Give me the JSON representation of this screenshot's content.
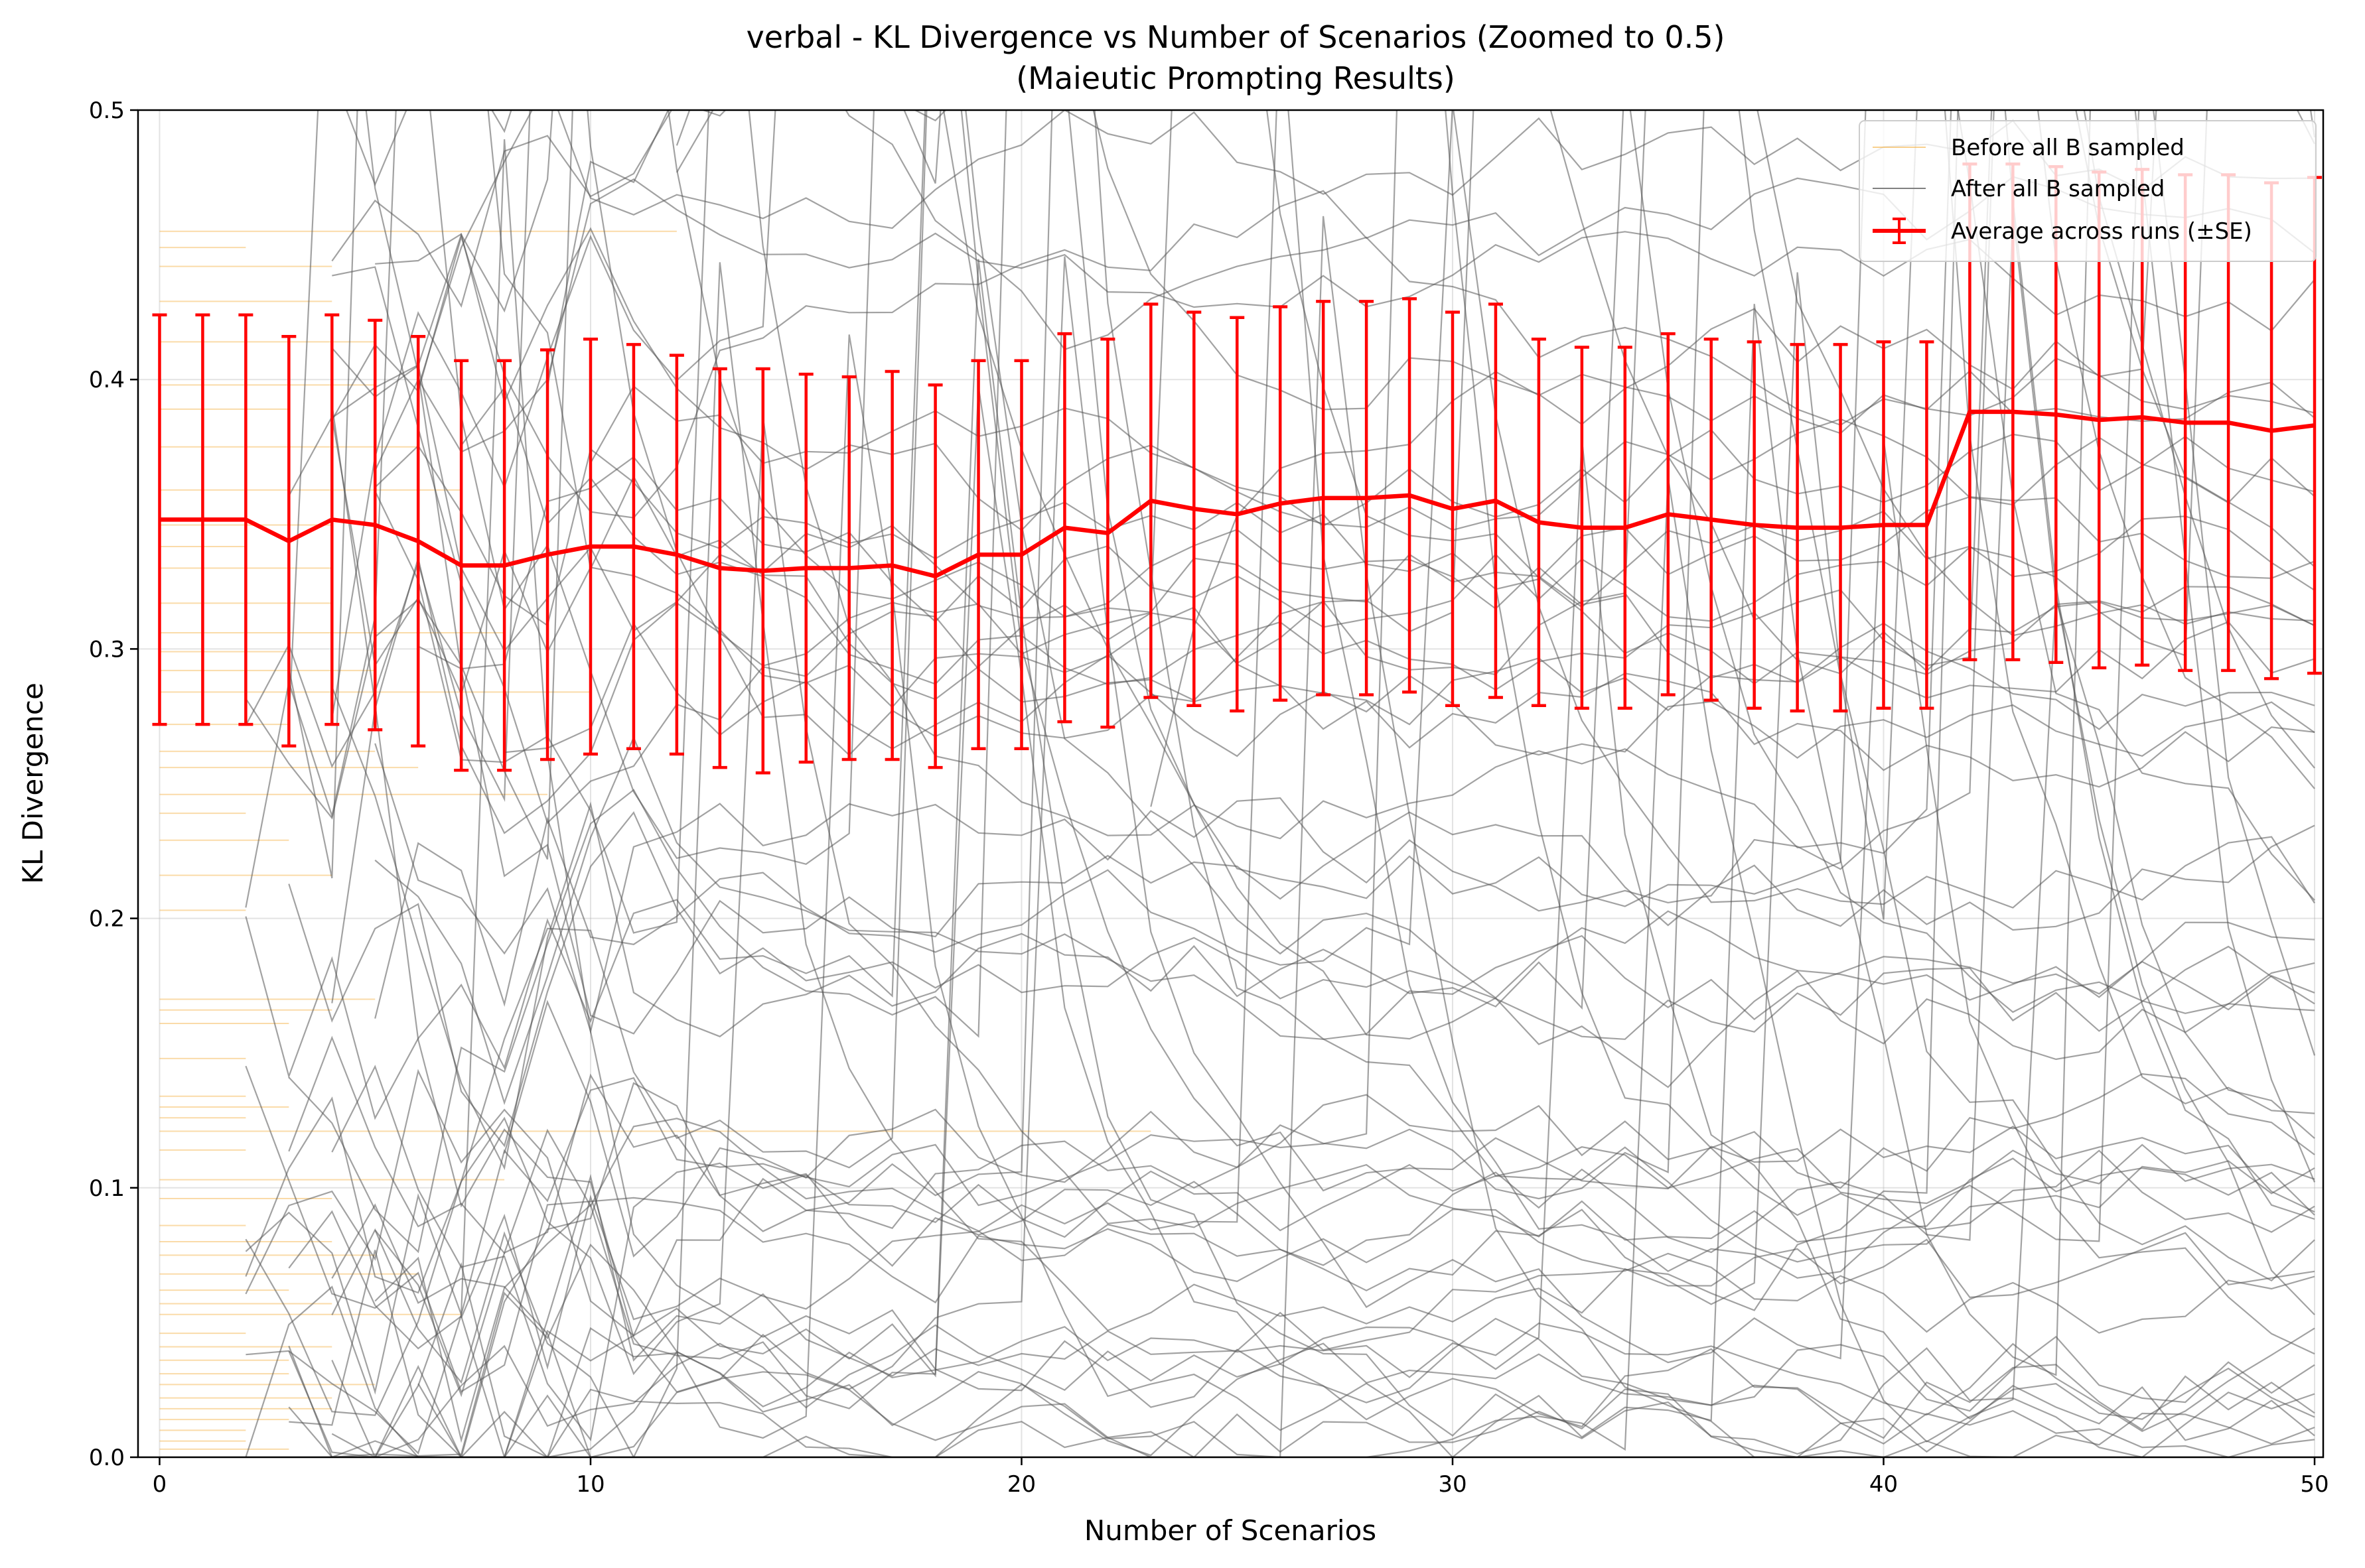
{
  "chart_data": {
    "type": "line",
    "title": "verbal - KL Divergence vs Number of Scenarios (Zoomed to 0.5)",
    "subtitle": "(Maieutic Prompting Results)",
    "xlabel": "Number of Scenarios",
    "ylabel": "KL Divergence",
    "xlim": [
      -0.5,
      50.2
    ],
    "ylim": [
      0,
      0.5
    ],
    "xticks": [
      0,
      10,
      20,
      30,
      40,
      50
    ],
    "yticks": [
      0.0,
      0.1,
      0.2,
      0.3,
      0.4,
      0.5
    ],
    "grid": true,
    "legend_position": "top-right",
    "colors": {
      "before": "#f5b041",
      "after": "#555555",
      "average": "#ff0000"
    },
    "legend": [
      {
        "label": "Before all B sampled",
        "color": "#f5b041",
        "style": "thin-line"
      },
      {
        "label": "After all B sampled",
        "color": "#808080",
        "style": "thin-line"
      },
      {
        "label": "Average across runs (±SE)",
        "color": "#ff0000",
        "style": "errorbar-line"
      }
    ],
    "average": {
      "x": [
        0,
        1,
        2,
        3,
        4,
        5,
        6,
        7,
        8,
        9,
        10,
        11,
        12,
        13,
        14,
        15,
        16,
        17,
        18,
        19,
        20,
        21,
        22,
        23,
        24,
        25,
        26,
        27,
        28,
        29,
        30,
        31,
        32,
        33,
        34,
        35,
        36,
        37,
        38,
        39,
        40,
        41,
        42,
        43,
        44,
        45,
        46,
        47,
        48,
        49,
        50
      ],
      "y": [
        0.348,
        0.348,
        0.348,
        0.34,
        0.348,
        0.346,
        0.34,
        0.331,
        0.331,
        0.335,
        0.338,
        0.338,
        0.335,
        0.33,
        0.329,
        0.33,
        0.33,
        0.331,
        0.327,
        0.335,
        0.335,
        0.345,
        0.343,
        0.355,
        0.352,
        0.35,
        0.354,
        0.356,
        0.356,
        0.357,
        0.352,
        0.355,
        0.347,
        0.345,
        0.345,
        0.35,
        0.348,
        0.346,
        0.345,
        0.345,
        0.346,
        0.346,
        0.388,
        0.388,
        0.387,
        0.385,
        0.386,
        0.384,
        0.384,
        0.381,
        0.383
      ],
      "se": [
        0.076,
        0.076,
        0.076,
        0.076,
        0.076,
        0.076,
        0.076,
        0.076,
        0.076,
        0.076,
        0.077,
        0.075,
        0.074,
        0.074,
        0.075,
        0.072,
        0.071,
        0.072,
        0.071,
        0.072,
        0.072,
        0.072,
        0.072,
        0.073,
        0.073,
        0.073,
        0.073,
        0.073,
        0.073,
        0.073,
        0.073,
        0.073,
        0.068,
        0.067,
        0.067,
        0.067,
        0.067,
        0.068,
        0.068,
        0.068,
        0.068,
        0.068,
        0.092,
        0.092,
        0.092,
        0.092,
        0.092,
        0.092,
        0.092,
        0.092,
        0.092
      ]
    },
    "runs_before": {
      "levels": [
        0.455,
        0.449,
        0.442,
        0.429,
        0.414,
        0.398,
        0.389,
        0.375,
        0.359,
        0.346,
        0.338,
        0.33,
        0.317,
        0.306,
        0.299,
        0.292,
        0.284,
        0.272,
        0.262,
        0.256,
        0.246,
        0.239,
        0.229,
        0.216,
        0.203,
        0.17,
        0.166,
        0.161,
        0.148,
        0.134,
        0.13,
        0.126,
        0.121,
        0.114,
        0.103,
        0.096,
        0.086,
        0.08,
        0.075,
        0.068,
        0.062,
        0.057,
        0.053,
        0.046,
        0.041,
        0.036,
        0.031,
        0.027,
        0.022,
        0.018,
        0.014,
        0.01,
        0.006,
        0.003
      ],
      "ends": [
        12,
        2,
        4,
        4,
        5,
        5,
        3,
        6,
        7,
        4,
        2,
        4,
        4,
        8,
        3,
        5,
        10,
        3,
        5,
        6,
        9,
        2,
        3,
        4,
        2,
        5,
        4,
        3,
        2,
        2,
        3,
        2,
        23,
        2,
        8,
        4,
        2,
        4,
        5,
        6,
        3,
        4,
        7,
        2,
        4,
        3,
        3,
        5,
        4,
        4,
        3,
        2,
        2,
        3
      ]
    }
  }
}
